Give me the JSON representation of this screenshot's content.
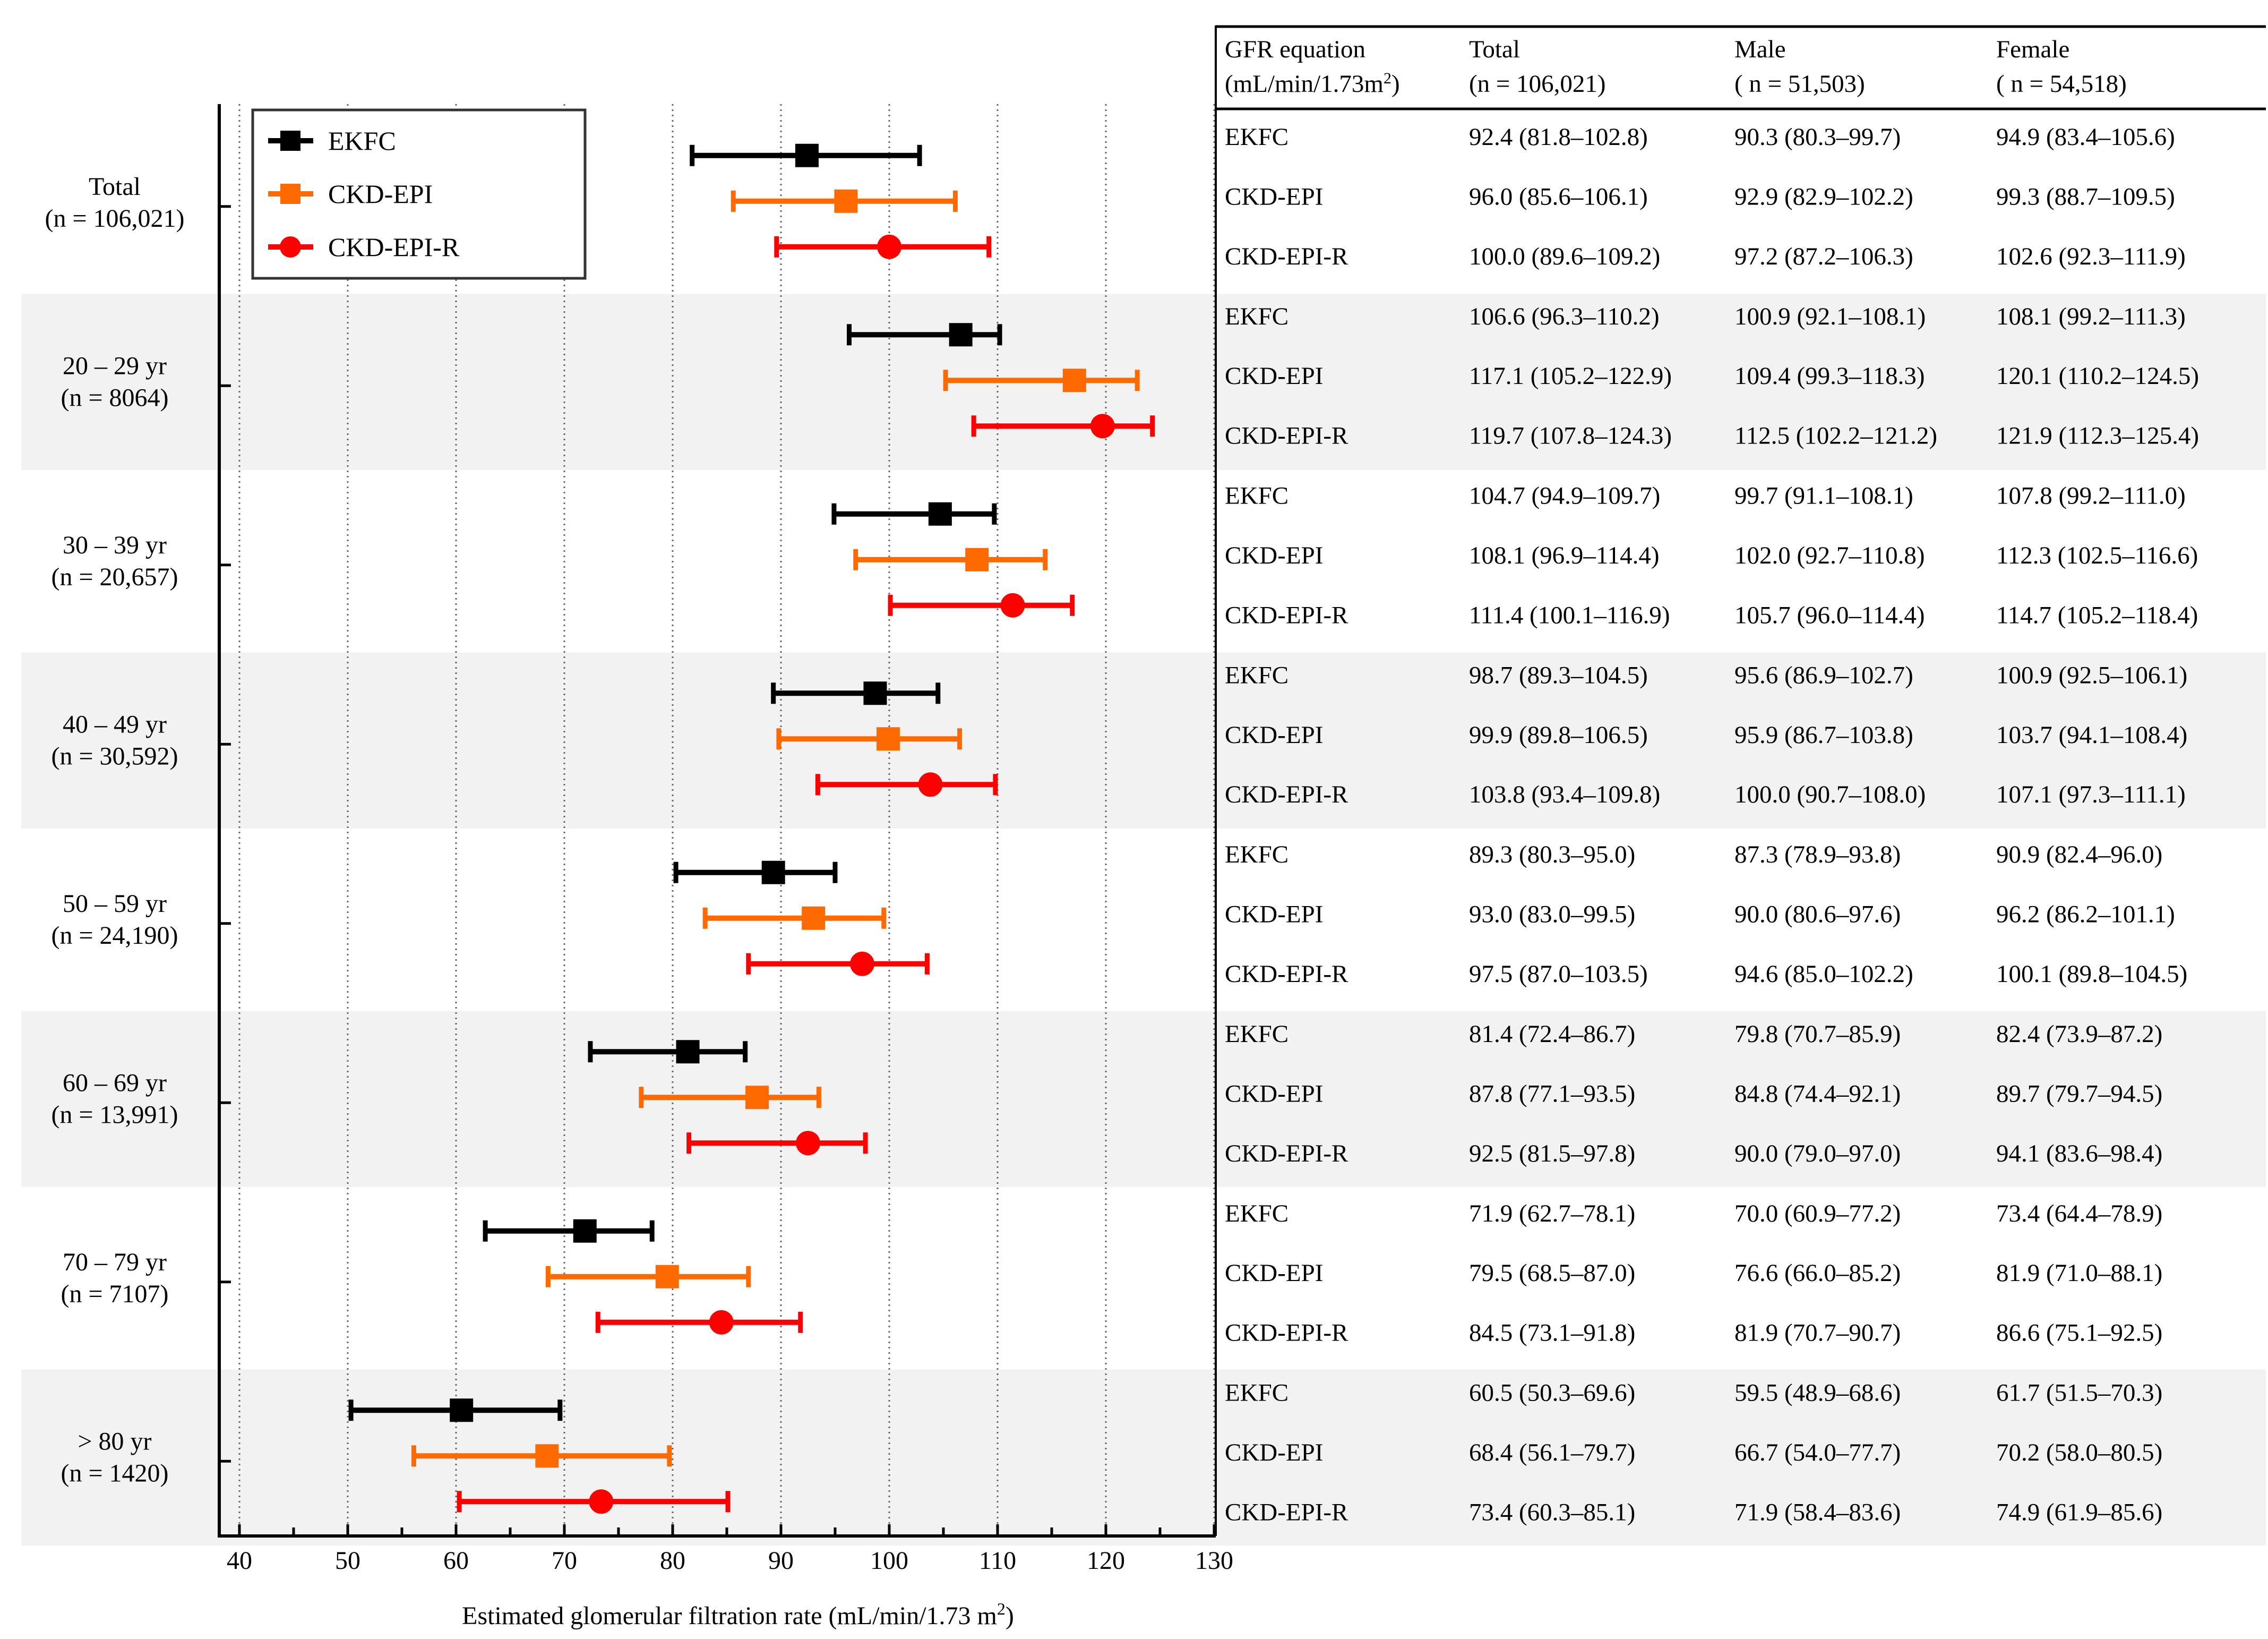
{
  "chart_data": {
    "type": "forest",
    "xlabel": "Estimated glomerular filtration rate (mL/min/1.73 m",
    "xlabel_sup": "2",
    "xlabel_close": ")",
    "xlim": [
      40,
      130
    ],
    "xticks": [
      40,
      50,
      60,
      70,
      80,
      90,
      100,
      110,
      120,
      130
    ],
    "gridlines": [
      40,
      50,
      60,
      70,
      80,
      90,
      100,
      110,
      120,
      130
    ],
    "legend": [
      {
        "name": "EKFC",
        "color": "#000000",
        "marker": "square"
      },
      {
        "name": "CKD-EPI",
        "color": "#ff6a00",
        "marker": "square"
      },
      {
        "name": "CKD-EPI-R",
        "color": "#ff0000",
        "marker": "circle"
      }
    ],
    "groups": [
      {
        "label": "Total",
        "n": "(n = 106,021)",
        "shaded": false,
        "estimates": [
          {
            "series": "EKFC",
            "value": 92.4,
            "low": 81.8,
            "high": 102.8
          },
          {
            "series": "CKD-EPI",
            "value": 96.0,
            "low": 85.6,
            "high": 106.1
          },
          {
            "series": "CKD-EPI-R",
            "value": 100.0,
            "low": 89.6,
            "high": 109.2
          }
        ]
      },
      {
        "label": "20 – 29 yr",
        "n": "(n = 8064)",
        "shaded": true,
        "estimates": [
          {
            "series": "EKFC",
            "value": 106.6,
            "low": 96.3,
            "high": 110.2
          },
          {
            "series": "CKD-EPI",
            "value": 117.1,
            "low": 105.2,
            "high": 122.9
          },
          {
            "series": "CKD-EPI-R",
            "value": 119.7,
            "low": 107.8,
            "high": 124.3
          }
        ]
      },
      {
        "label": "30 – 39 yr",
        "n": "(n = 20,657)",
        "shaded": false,
        "estimates": [
          {
            "series": "EKFC",
            "value": 104.7,
            "low": 94.9,
            "high": 109.7
          },
          {
            "series": "CKD-EPI",
            "value": 108.1,
            "low": 96.9,
            "high": 114.4
          },
          {
            "series": "CKD-EPI-R",
            "value": 111.4,
            "low": 100.1,
            "high": 116.9
          }
        ]
      },
      {
        "label": "40 – 49 yr",
        "n": "(n = 30,592)",
        "shaded": true,
        "estimates": [
          {
            "series": "EKFC",
            "value": 98.7,
            "low": 89.3,
            "high": 104.5
          },
          {
            "series": "CKD-EPI",
            "value": 99.9,
            "low": 89.8,
            "high": 106.5
          },
          {
            "series": "CKD-EPI-R",
            "value": 103.8,
            "low": 93.4,
            "high": 109.8
          }
        ]
      },
      {
        "label": "50 – 59 yr",
        "n": "(n = 24,190)",
        "shaded": false,
        "estimates": [
          {
            "series": "EKFC",
            "value": 89.3,
            "low": 80.3,
            "high": 95.0
          },
          {
            "series": "CKD-EPI",
            "value": 93.0,
            "low": 83.0,
            "high": 99.5
          },
          {
            "series": "CKD-EPI-R",
            "value": 97.5,
            "low": 87.0,
            "high": 103.5
          }
        ]
      },
      {
        "label": "60 – 69 yr",
        "n": "(n = 13,991)",
        "shaded": true,
        "estimates": [
          {
            "series": "EKFC",
            "value": 81.4,
            "low": 72.4,
            "high": 86.7
          },
          {
            "series": "CKD-EPI",
            "value": 87.8,
            "low": 77.1,
            "high": 93.5
          },
          {
            "series": "CKD-EPI-R",
            "value": 92.5,
            "low": 81.5,
            "high": 97.8
          }
        ]
      },
      {
        "label": "70 – 79 yr",
        "n": "(n = 7107)",
        "shaded": false,
        "estimates": [
          {
            "series": "EKFC",
            "value": 71.9,
            "low": 62.7,
            "high": 78.1
          },
          {
            "series": "CKD-EPI",
            "value": 79.5,
            "low": 68.5,
            "high": 87.0
          },
          {
            "series": "CKD-EPI-R",
            "value": 84.5,
            "low": 73.1,
            "high": 91.8
          }
        ]
      },
      {
        "label": "> 80 yr",
        "n": "(n = 1420)",
        "shaded": true,
        "estimates": [
          {
            "series": "EKFC",
            "value": 60.5,
            "low": 50.3,
            "high": 69.6
          },
          {
            "series": "CKD-EPI",
            "value": 68.4,
            "low": 56.1,
            "high": 79.7
          },
          {
            "series": "CKD-EPI-R",
            "value": 73.4,
            "low": 60.3,
            "high": 85.1
          }
        ]
      }
    ]
  },
  "table": {
    "headers": [
      {
        "line1": "GFR equation",
        "line2": "(mL/min/1.73m",
        "line2_sup": "2",
        "line2_close": ")"
      },
      {
        "line1": "Total",
        "line2": "(n = 106,021)"
      },
      {
        "line1": "Male",
        "line2": "( n = 51,503)"
      },
      {
        "line1": "Female",
        "line2": "( n = 54,518)"
      }
    ],
    "rows": [
      [
        "EKFC",
        "92.4 (81.8–102.8)",
        "90.3 (80.3–99.7)",
        "94.9 (83.4–105.6)"
      ],
      [
        "CKD-EPI",
        "96.0 (85.6–106.1)",
        "92.9 (82.9–102.2)",
        "99.3 (88.7–109.5)"
      ],
      [
        "CKD-EPI-R",
        "100.0 (89.6–109.2)",
        "97.2 (87.2–106.3)",
        "102.6 (92.3–111.9)"
      ],
      [
        "EKFC",
        "106.6 (96.3–110.2)",
        "100.9 (92.1–108.1)",
        "108.1 (99.2–111.3)"
      ],
      [
        "CKD-EPI",
        "117.1 (105.2–122.9)",
        "109.4 (99.3–118.3)",
        "120.1 (110.2–124.5)"
      ],
      [
        "CKD-EPI-R",
        "119.7 (107.8–124.3)",
        "112.5 (102.2–121.2)",
        "121.9 (112.3–125.4)"
      ],
      [
        "EKFC",
        "104.7 (94.9–109.7)",
        "99.7 (91.1–108.1)",
        "107.8 (99.2–111.0)"
      ],
      [
        "CKD-EPI",
        "108.1 (96.9–114.4)",
        "102.0 (92.7–110.8)",
        "112.3 (102.5–116.6)"
      ],
      [
        "CKD-EPI-R",
        "111.4 (100.1–116.9)",
        "105.7 (96.0–114.4)",
        "114.7 (105.2–118.4)"
      ],
      [
        "EKFC",
        "98.7 (89.3–104.5)",
        "95.6 (86.9–102.7)",
        "100.9 (92.5–106.1)"
      ],
      [
        "CKD-EPI",
        "99.9 (89.8–106.5)",
        "95.9 (86.7–103.8)",
        "103.7 (94.1–108.4)"
      ],
      [
        "CKD-EPI-R",
        "103.8 (93.4–109.8)",
        "100.0 (90.7–108.0)",
        "107.1 (97.3–111.1)"
      ],
      [
        "EKFC",
        "89.3 (80.3–95.0)",
        "87.3 (78.9–93.8)",
        "90.9 (82.4–96.0)"
      ],
      [
        "CKD-EPI",
        "93.0 (83.0–99.5)",
        "90.0 (80.6–97.6)",
        "96.2 (86.2–101.1)"
      ],
      [
        "CKD-EPI-R",
        "97.5 (87.0–103.5)",
        "94.6 (85.0–102.2)",
        "100.1 (89.8–104.5)"
      ],
      [
        "EKFC",
        "81.4 (72.4–86.7)",
        "79.8 (70.7–85.9)",
        "82.4 (73.9–87.2)"
      ],
      [
        "CKD-EPI",
        "87.8 (77.1–93.5)",
        "84.8 (74.4–92.1)",
        "89.7 (79.7–94.5)"
      ],
      [
        "CKD-EPI-R",
        "92.5 (81.5–97.8)",
        "90.0 (79.0–97.0)",
        "94.1 (83.6–98.4)"
      ],
      [
        "EKFC",
        "71.9 (62.7–78.1)",
        "70.0 (60.9–77.2)",
        "73.4 (64.4–78.9)"
      ],
      [
        "CKD-EPI",
        "79.5 (68.5–87.0)",
        "76.6 (66.0–85.2)",
        "81.9 (71.0–88.1)"
      ],
      [
        "CKD-EPI-R",
        "84.5 (73.1–91.8)",
        "81.9 (70.7–90.7)",
        "86.6 (75.1–92.5)"
      ],
      [
        "EKFC",
        "60.5 (50.3–69.6)",
        "59.5 (48.9–68.6)",
        "61.7 (51.5–70.3)"
      ],
      [
        "CKD-EPI",
        "68.4 (56.1–79.7)",
        "66.7 (54.0–77.7)",
        "70.2 (58.0–80.5)"
      ],
      [
        "CKD-EPI-R",
        "73.4 (60.3–85.1)",
        "71.9 (58.4–83.6)",
        "74.9 (61.9–85.6)"
      ]
    ]
  }
}
